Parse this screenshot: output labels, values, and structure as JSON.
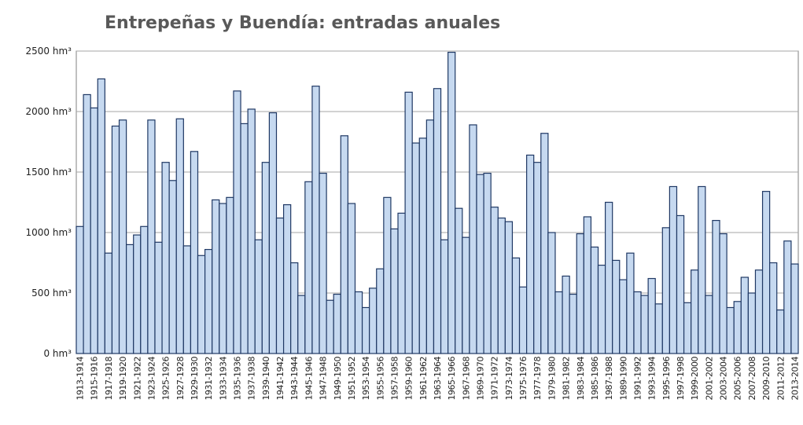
{
  "chart_data": {
    "type": "bar",
    "title": "Entrepeñas y Buendía: entradas anuales",
    "categories": [
      "1913-1914",
      null,
      "1915-1916",
      null,
      "1917-1918",
      null,
      "1919-1920",
      null,
      "1921-1922",
      null,
      "1923-1924",
      null,
      "1925-1926",
      null,
      "1927-1928",
      null,
      "1929-1930",
      null,
      "1931-1932",
      null,
      "1933-1934",
      null,
      "1935-1936",
      null,
      "1937-1938",
      null,
      "1939-1940",
      null,
      "1941-1942",
      null,
      "1943-1944",
      null,
      "1945-1946",
      null,
      "1947-1948",
      null,
      "1949-1950",
      null,
      "1951-1952",
      null,
      "1953-1954",
      null,
      "1955-1956",
      null,
      "1957-1958",
      null,
      "1959-1960",
      null,
      "1961-1962",
      null,
      "1963-1964",
      null,
      "1965-1966",
      null,
      "1967-1968",
      null,
      "1969-1970",
      null,
      "1971-1972",
      null,
      "1973-1974",
      null,
      "1975-1976",
      null,
      "1977-1978",
      null,
      "1979-1980",
      null,
      "1981-1982",
      null,
      "1983-1984",
      null,
      "1985-1986",
      null,
      "1987-1988",
      null,
      "1989-1990",
      null,
      "1991-1992",
      null,
      "1993-1994",
      null,
      "1995-1996",
      null,
      "1997-1998",
      null,
      "1999-2000",
      null,
      "2001-2002",
      null,
      "2003-2004",
      null,
      "2005-2006",
      null,
      "2007-2008",
      null,
      "2009-2010",
      null,
      "2011-2012",
      null,
      "2013-2014"
    ],
    "values": [
      1050,
      2140,
      2030,
      2270,
      830,
      1880,
      1930,
      900,
      980,
      1050,
      1930,
      920,
      1580,
      1430,
      1940,
      890,
      1670,
      810,
      860,
      1270,
      1240,
      1290,
      2170,
      1900,
      2020,
      940,
      1580,
      1990,
      1120,
      1230,
      750,
      480,
      1420,
      2210,
      1490,
      440,
      490,
      1800,
      1240,
      510,
      380,
      540,
      700,
      1290,
      1030,
      1160,
      2160,
      1740,
      1780,
      1930,
      2190,
      940,
      2490,
      1200,
      960,
      1890,
      1480,
      1490,
      1210,
      1120,
      1090,
      790,
      550,
      1640,
      1580,
      1820,
      1000,
      510,
      640,
      490,
      990,
      1130,
      880,
      730,
      1250,
      770,
      610,
      830,
      510,
      480,
      620,
      410,
      1040,
      1380,
      1140,
      420,
      690,
      1380,
      480,
      1100,
      990,
      380,
      430,
      630,
      500,
      690,
      1340,
      750,
      360,
      930,
      740
    ],
    "color": "#c6d9f0",
    "ylim": [
      0,
      2500
    ],
    "yticks": [
      {
        "value": 0,
        "label": "0 hm³"
      },
      {
        "value": 500,
        "label": "500 hm³"
      },
      {
        "value": 1000,
        "label": "1000 hm³"
      },
      {
        "value": 1500,
        "label": "1500 hm³"
      },
      {
        "value": 2000,
        "label": "2000 hm³"
      },
      {
        "value": 2500,
        "label": "2500 hm³"
      }
    ],
    "grid": true
  }
}
